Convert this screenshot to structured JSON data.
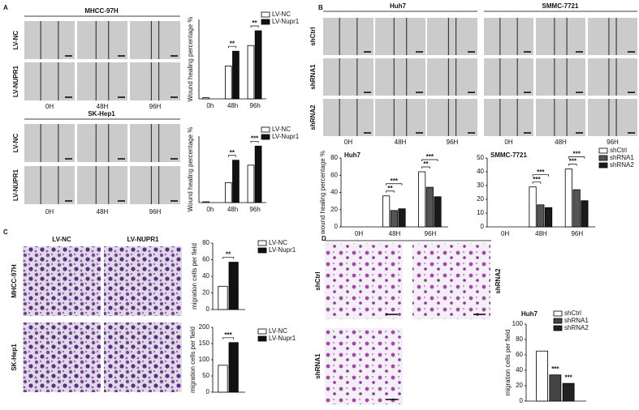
{
  "panel_letters": [
    "A",
    "B",
    "C",
    "D"
  ],
  "image_panels": [
    {
      "title": "MHCC-97H",
      "rows": [
        "LV-NC",
        "LV-NUPR1"
      ],
      "cols": [
        "0H",
        "48H",
        "96H"
      ]
    },
    {
      "title": "SK-Hep1",
      "rows": [
        "LV-NC",
        "LV-NUPR1"
      ],
      "cols": [
        "0H",
        "48H",
        "96H"
      ]
    },
    {
      "title": "Huh7",
      "rows": [
        "shCtrl",
        "shRNA1",
        "shRNA2"
      ],
      "cols": [
        "0H",
        "48H",
        "96H"
      ]
    },
    {
      "title": "SMMC-7721",
      "cols": [
        "0H",
        "48H",
        "96H"
      ]
    },
    {
      "rows": [
        "MHCC-97H",
        "SK-Hep1"
      ],
      "cols": [
        "LV-NC",
        "LV-NUPR1"
      ]
    },
    {
      "labels": [
        "shCtrl",
        "shRNA2",
        "shRNA1"
      ]
    }
  ],
  "chart_data": [
    {
      "type": "bar",
      "y_label": "Wound healing percentage %",
      "categories": [
        "0h",
        "48h",
        "96h"
      ],
      "ylim": [
        0,
        70
      ],
      "series": [
        {
          "name": "LV-NC",
          "color": "#ffffff",
          "values": [
            1,
            29,
            47
          ]
        },
        {
          "name": "LV-Nupr1",
          "color": "#111111",
          "values": [
            0,
            42,
            60
          ]
        }
      ],
      "annotations": [
        null,
        [
          "**"
        ],
        [
          "**"
        ]
      ]
    },
    {
      "type": "bar",
      "y_label": "Wound healing percentage %",
      "categories": [
        "0h",
        "48h",
        "96h"
      ],
      "ylim": [
        0,
        80
      ],
      "series": [
        {
          "name": "LV-NC",
          "color": "#ffffff",
          "values": [
            1,
            24,
            45
          ]
        },
        {
          "name": "LV-Nupr1",
          "color": "#111111",
          "values": [
            0,
            51,
            68
          ]
        }
      ],
      "annotations": [
        null,
        [
          "**"
        ],
        [
          "***"
        ]
      ]
    },
    {
      "type": "bar",
      "title": "Huh7",
      "y_label": "wound healing percentage %",
      "categories": [
        "0H",
        "48H",
        "96H"
      ],
      "ylim": [
        0,
        80
      ],
      "yticks": [
        0,
        20,
        40,
        60,
        80
      ],
      "series": [
        {
          "name": "shCtrl",
          "color": "#ffffff",
          "values": [
            0,
            36,
            64
          ]
        },
        {
          "name": "shRNA1",
          "color": "#555555",
          "values": [
            0,
            19,
            46
          ]
        },
        {
          "name": "shRNA2",
          "color": "#1a1a1a",
          "values": [
            0,
            21,
            35
          ]
        }
      ],
      "annotations": [
        null,
        [
          "**",
          "***"
        ],
        [
          "**",
          "***"
        ]
      ]
    },
    {
      "type": "bar",
      "title": "SMMC-7721",
      "categories": [
        "0H",
        "48H",
        "96H"
      ],
      "ylim": [
        0,
        50
      ],
      "yticks": [
        0,
        10,
        20,
        30,
        40,
        50
      ],
      "series": [
        {
          "name": "shCtrl",
          "color": "#ffffff",
          "values": [
            0,
            29,
            42
          ]
        },
        {
          "name": "shRNA1",
          "color": "#555555",
          "values": [
            0,
            16,
            27
          ]
        },
        {
          "name": "shRNA2",
          "color": "#1a1a1a",
          "values": [
            0,
            14,
            19
          ]
        }
      ],
      "annotations": [
        null,
        [
          "***",
          "***"
        ],
        [
          "***",
          "***"
        ]
      ]
    },
    {
      "type": "bar",
      "y_label": "migration cells per field",
      "ylim": [
        0,
        80
      ],
      "yticks": [
        0,
        20,
        40,
        60,
        80
      ],
      "series": [
        {
          "name": "LV-NC",
          "color": "#ffffff",
          "values": [
            28
          ]
        },
        {
          "name": "LV-Nupr1",
          "color": "#111111",
          "values": [
            57
          ]
        }
      ],
      "annotations": [
        "**"
      ]
    },
    {
      "type": "bar",
      "y_label": "migration cells per field",
      "ylim": [
        0,
        200
      ],
      "yticks": [
        0,
        50,
        100,
        150,
        200
      ],
      "series": [
        {
          "name": "LV-NC",
          "color": "#ffffff",
          "values": [
            83
          ]
        },
        {
          "name": "LV-Nupr1",
          "color": "#111111",
          "values": [
            153
          ]
        }
      ],
      "annotations": [
        "***"
      ]
    },
    {
      "type": "bar",
      "title": "Huh7",
      "y_label": "migration cells per field",
      "ylim": [
        0,
        100
      ],
      "yticks": [
        0,
        20,
        40,
        60,
        80,
        100
      ],
      "series": [
        {
          "name": "shCtrl",
          "color": "#ffffff",
          "values": [
            65
          ]
        },
        {
          "name": "shRNA1",
          "color": "#444444",
          "values": [
            34
          ]
        },
        {
          "name": "shRNA2",
          "color": "#222222",
          "values": [
            23
          ]
        }
      ],
      "annotations": [
        null,
        "***",
        "***"
      ]
    }
  ]
}
